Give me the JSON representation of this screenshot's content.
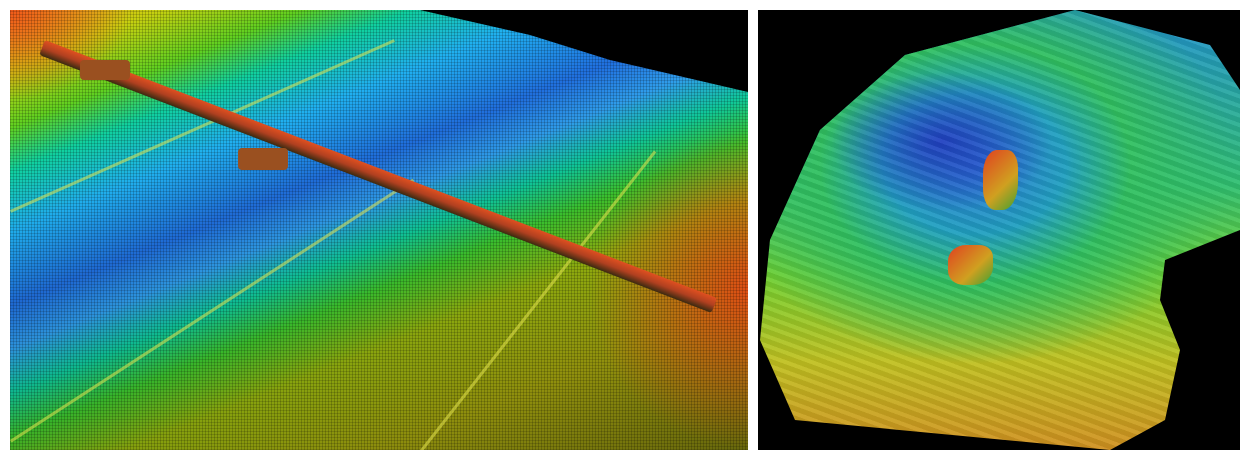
{
  "colors": {
    "background": "#ffffff",
    "shallow": "#e05020",
    "mid": "#40d030",
    "deep": "#2070e0",
    "nodata": "#000000"
  },
  "images": [
    {
      "id": "left",
      "kind": "3d-point-cloud-bathymetry"
    },
    {
      "id": "right",
      "kind": "shaded-relief-bathymetry-map"
    }
  ]
}
